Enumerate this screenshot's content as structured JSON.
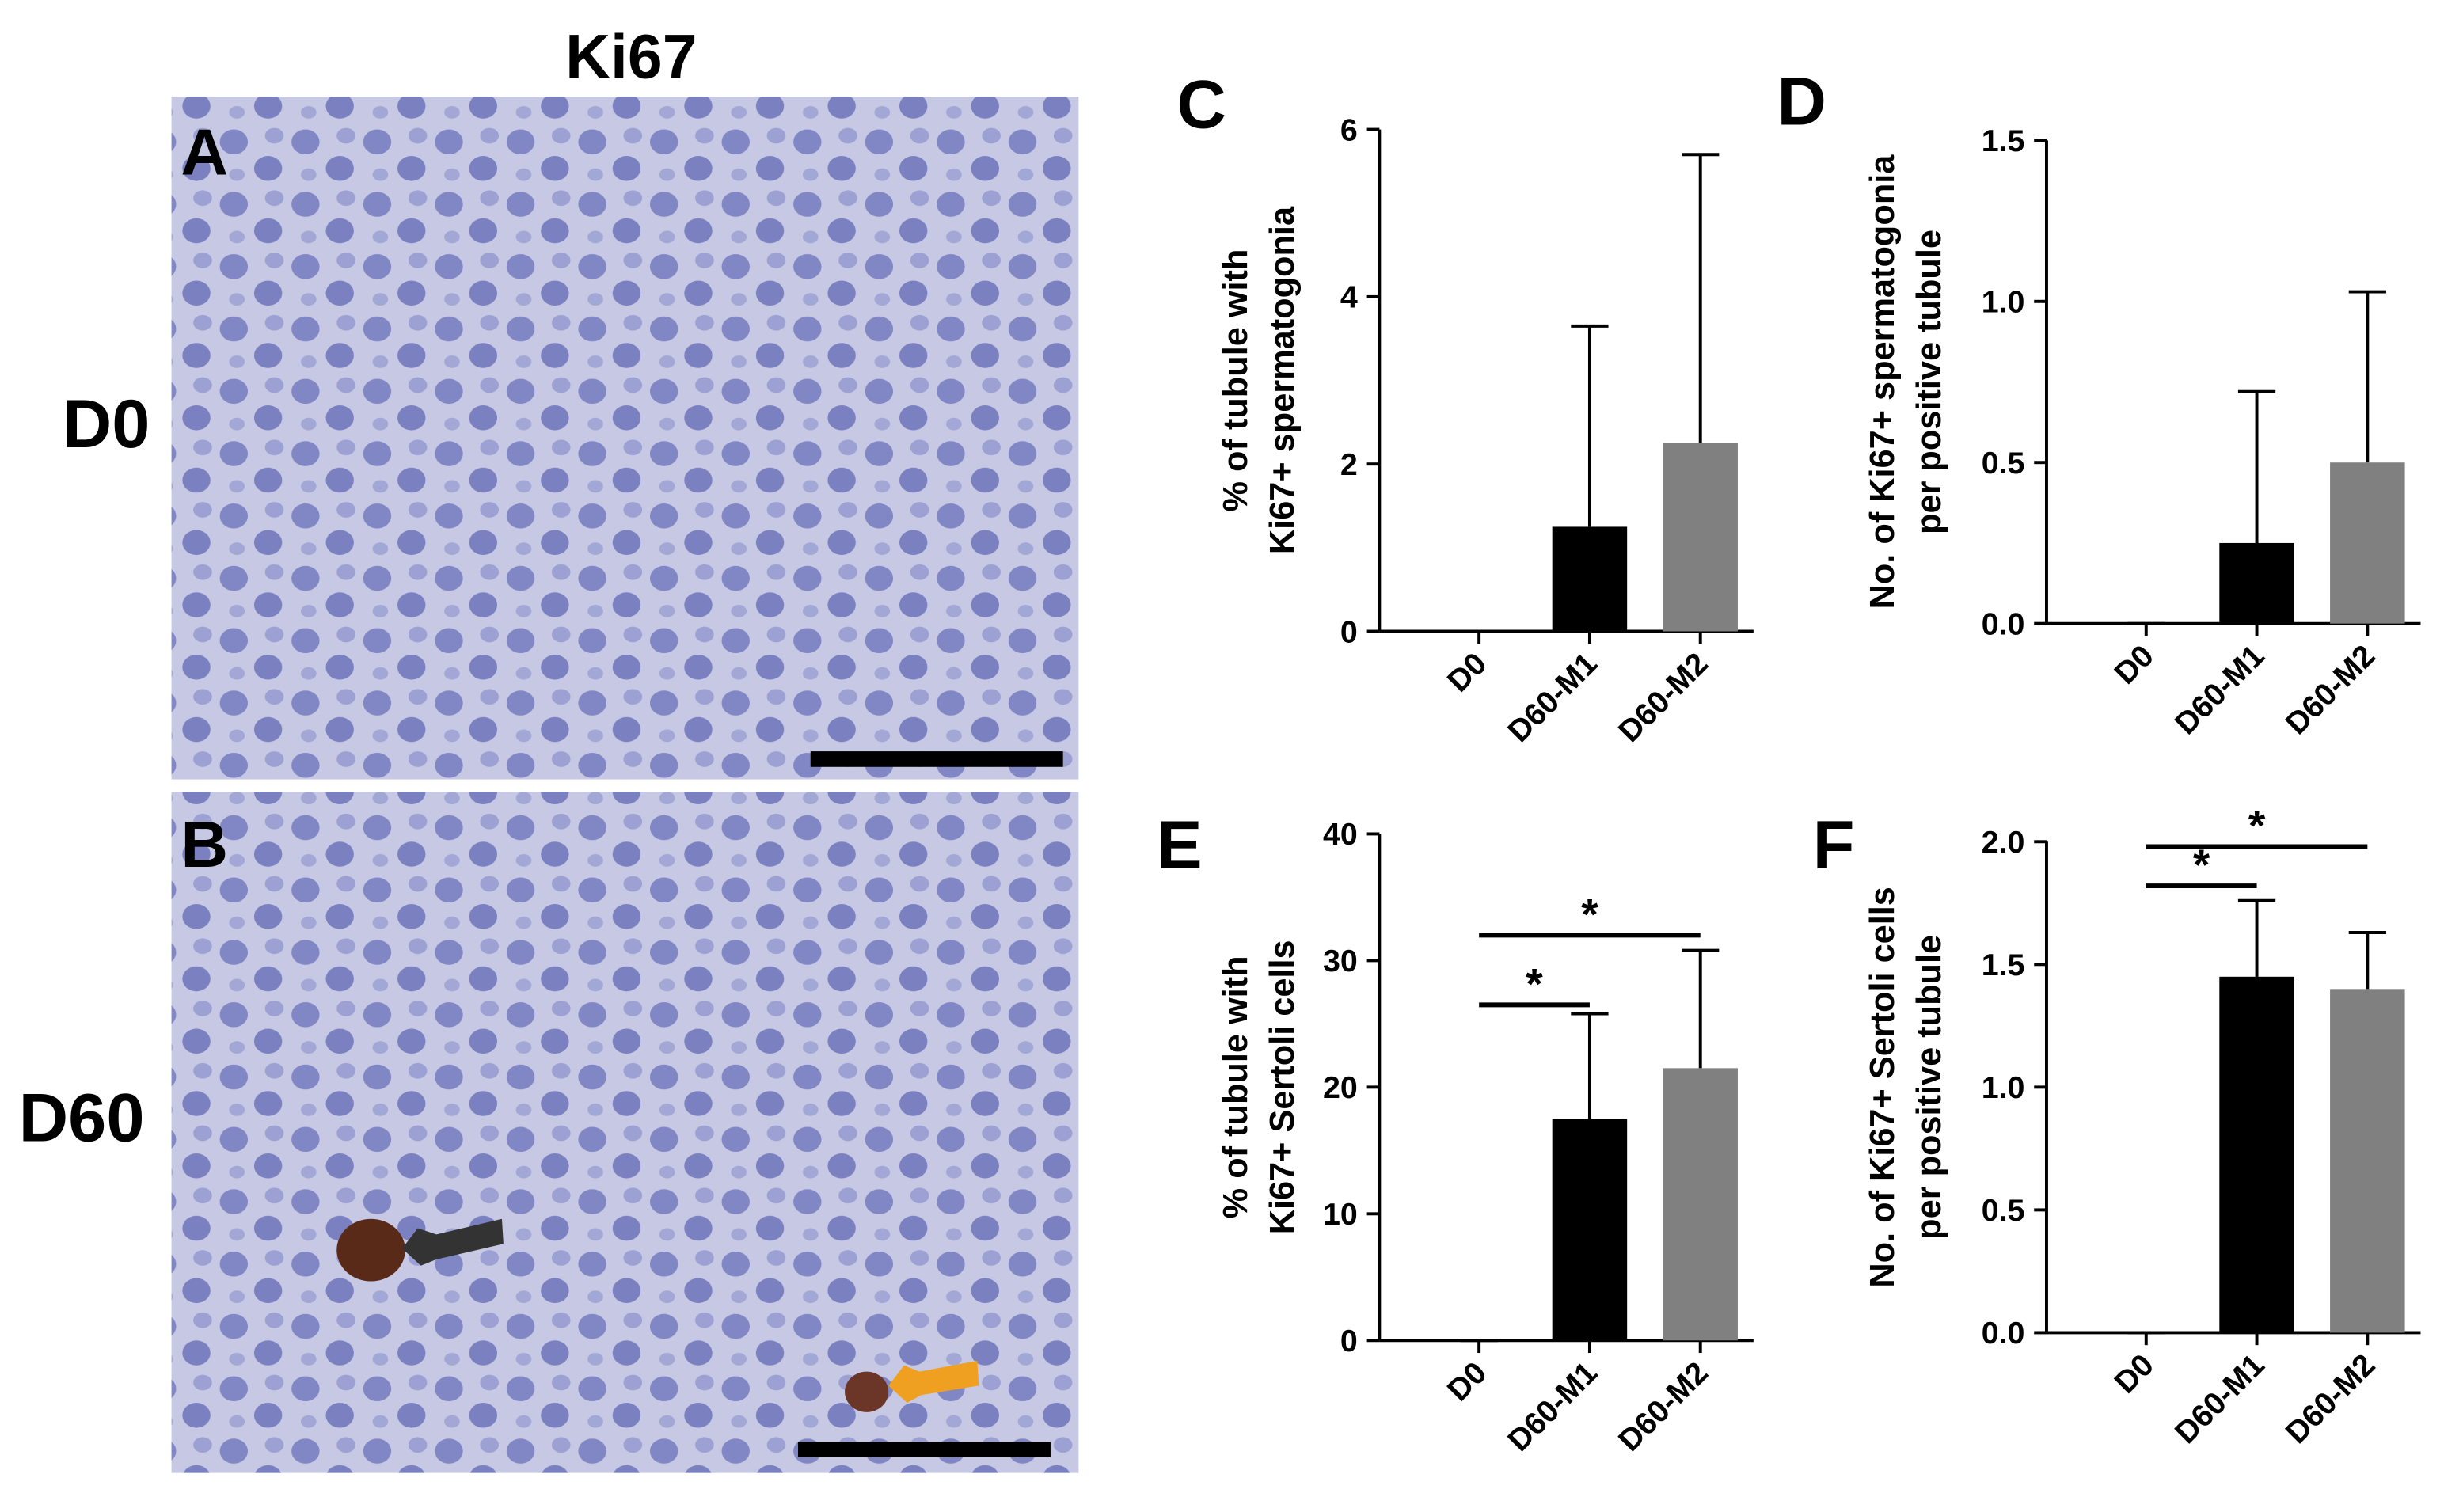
{
  "figure": {
    "stain": "Ki67",
    "panels": [
      {
        "letter": "A",
        "group": "D0"
      },
      {
        "letter": "B",
        "group": "D60"
      }
    ]
  },
  "chart_data": [
    {
      "type": "bar",
      "panel": "C",
      "ylabel": [
        "% of tubule with",
        "Ki67+ spermatogonia"
      ],
      "categories": [
        "D0",
        "D60-M1",
        "D60-M2"
      ],
      "values": [
        0,
        1.25,
        2.25
      ],
      "errors": [
        0,
        2.4,
        3.45
      ],
      "colors": [
        "#000000",
        "#000000",
        "#808080"
      ],
      "ylim": [
        0,
        6
      ],
      "yticks": [
        0,
        2,
        4,
        6
      ],
      "significance": []
    },
    {
      "type": "bar",
      "panel": "D",
      "ylabel": [
        "No. of Ki67+ spermatogonia",
        "per positive tubule"
      ],
      "categories": [
        "D0",
        "D60-M1",
        "D60-M2"
      ],
      "values": [
        0,
        0.25,
        0.5
      ],
      "errors": [
        0,
        0.47,
        0.53
      ],
      "colors": [
        "#000000",
        "#000000",
        "#808080"
      ],
      "ylim": [
        0,
        1.5
      ],
      "yticks": [
        {
          "value": 0,
          "label": "0.0"
        },
        0.5,
        {
          "value": 1,
          "label": "1.0"
        },
        1.5
      ],
      "significance": []
    },
    {
      "type": "bar",
      "panel": "E",
      "ylabel": [
        "% of tubule with",
        "Ki67+ Sertoli cells"
      ],
      "categories": [
        "D0",
        "D60-M1",
        "D60-M2"
      ],
      "values": [
        0,
        17.5,
        21.5
      ],
      "errors": [
        0,
        8.3,
        9.3
      ],
      "colors": [
        "#000000",
        "#000000",
        "#808080"
      ],
      "ylim": [
        0,
        40
      ],
      "yticks": [
        0,
        10,
        20,
        30,
        40
      ],
      "significance": [
        {
          "from": "D0",
          "to": "D60-M1",
          "y": 26.5,
          "label": "*"
        },
        {
          "from": "D0",
          "to": "D60-M2",
          "y": 32,
          "label": "*"
        }
      ]
    },
    {
      "type": "bar",
      "panel": "F",
      "ylabel": [
        "No. of Ki67+ Sertoli cells",
        "per positive tubule"
      ],
      "categories": [
        "D0",
        "D60-M1",
        "D60-M2"
      ],
      "values": [
        0,
        1.45,
        1.4
      ],
      "errors": [
        0,
        0.31,
        0.23
      ],
      "colors": [
        "#000000",
        "#000000",
        "#808080"
      ],
      "ylim": [
        0,
        2
      ],
      "yticks": [
        {
          "value": 0,
          "label": "0.0"
        },
        0.5,
        {
          "value": 1,
          "label": "1.0"
        },
        1.5,
        {
          "value": 2,
          "label": "2.0"
        }
      ],
      "significance": [
        {
          "from": "D0",
          "to": "D60-M1",
          "y": 1.82,
          "label": "*"
        },
        {
          "from": "D0",
          "to": "D60-M2",
          "y": 1.98,
          "label": "*"
        }
      ]
    }
  ]
}
